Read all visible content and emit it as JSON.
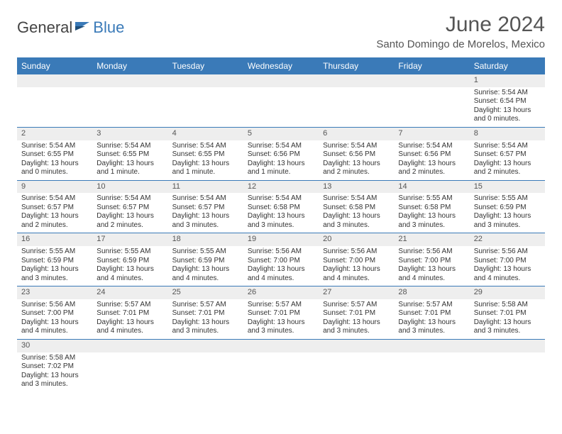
{
  "logo": {
    "text1": "General",
    "text2": "Blue"
  },
  "title": "June 2024",
  "subtitle": "Santo Domingo de Morelos, Mexico",
  "colors": {
    "header_bg": "#3a7ab8",
    "header_fg": "#ffffff",
    "daynum_bg": "#eeeeee",
    "row_border": "#3a7ab8",
    "text": "#333333",
    "logo_accent": "#3a7ab8"
  },
  "day_headers": [
    "Sunday",
    "Monday",
    "Tuesday",
    "Wednesday",
    "Thursday",
    "Friday",
    "Saturday"
  ],
  "weeks": [
    [
      null,
      null,
      null,
      null,
      null,
      null,
      {
        "n": "1",
        "sr": "Sunrise: 5:54 AM",
        "ss": "Sunset: 6:54 PM",
        "d1": "Daylight: 13 hours",
        "d2": "and 0 minutes."
      }
    ],
    [
      {
        "n": "2",
        "sr": "Sunrise: 5:54 AM",
        "ss": "Sunset: 6:55 PM",
        "d1": "Daylight: 13 hours",
        "d2": "and 0 minutes."
      },
      {
        "n": "3",
        "sr": "Sunrise: 5:54 AM",
        "ss": "Sunset: 6:55 PM",
        "d1": "Daylight: 13 hours",
        "d2": "and 1 minute."
      },
      {
        "n": "4",
        "sr": "Sunrise: 5:54 AM",
        "ss": "Sunset: 6:55 PM",
        "d1": "Daylight: 13 hours",
        "d2": "and 1 minute."
      },
      {
        "n": "5",
        "sr": "Sunrise: 5:54 AM",
        "ss": "Sunset: 6:56 PM",
        "d1": "Daylight: 13 hours",
        "d2": "and 1 minute."
      },
      {
        "n": "6",
        "sr": "Sunrise: 5:54 AM",
        "ss": "Sunset: 6:56 PM",
        "d1": "Daylight: 13 hours",
        "d2": "and 2 minutes."
      },
      {
        "n": "7",
        "sr": "Sunrise: 5:54 AM",
        "ss": "Sunset: 6:56 PM",
        "d1": "Daylight: 13 hours",
        "d2": "and 2 minutes."
      },
      {
        "n": "8",
        "sr": "Sunrise: 5:54 AM",
        "ss": "Sunset: 6:57 PM",
        "d1": "Daylight: 13 hours",
        "d2": "and 2 minutes."
      }
    ],
    [
      {
        "n": "9",
        "sr": "Sunrise: 5:54 AM",
        "ss": "Sunset: 6:57 PM",
        "d1": "Daylight: 13 hours",
        "d2": "and 2 minutes."
      },
      {
        "n": "10",
        "sr": "Sunrise: 5:54 AM",
        "ss": "Sunset: 6:57 PM",
        "d1": "Daylight: 13 hours",
        "d2": "and 2 minutes."
      },
      {
        "n": "11",
        "sr": "Sunrise: 5:54 AM",
        "ss": "Sunset: 6:57 PM",
        "d1": "Daylight: 13 hours",
        "d2": "and 3 minutes."
      },
      {
        "n": "12",
        "sr": "Sunrise: 5:54 AM",
        "ss": "Sunset: 6:58 PM",
        "d1": "Daylight: 13 hours",
        "d2": "and 3 minutes."
      },
      {
        "n": "13",
        "sr": "Sunrise: 5:54 AM",
        "ss": "Sunset: 6:58 PM",
        "d1": "Daylight: 13 hours",
        "d2": "and 3 minutes."
      },
      {
        "n": "14",
        "sr": "Sunrise: 5:55 AM",
        "ss": "Sunset: 6:58 PM",
        "d1": "Daylight: 13 hours",
        "d2": "and 3 minutes."
      },
      {
        "n": "15",
        "sr": "Sunrise: 5:55 AM",
        "ss": "Sunset: 6:59 PM",
        "d1": "Daylight: 13 hours",
        "d2": "and 3 minutes."
      }
    ],
    [
      {
        "n": "16",
        "sr": "Sunrise: 5:55 AM",
        "ss": "Sunset: 6:59 PM",
        "d1": "Daylight: 13 hours",
        "d2": "and 3 minutes."
      },
      {
        "n": "17",
        "sr": "Sunrise: 5:55 AM",
        "ss": "Sunset: 6:59 PM",
        "d1": "Daylight: 13 hours",
        "d2": "and 4 minutes."
      },
      {
        "n": "18",
        "sr": "Sunrise: 5:55 AM",
        "ss": "Sunset: 6:59 PM",
        "d1": "Daylight: 13 hours",
        "d2": "and 4 minutes."
      },
      {
        "n": "19",
        "sr": "Sunrise: 5:56 AM",
        "ss": "Sunset: 7:00 PM",
        "d1": "Daylight: 13 hours",
        "d2": "and 4 minutes."
      },
      {
        "n": "20",
        "sr": "Sunrise: 5:56 AM",
        "ss": "Sunset: 7:00 PM",
        "d1": "Daylight: 13 hours",
        "d2": "and 4 minutes."
      },
      {
        "n": "21",
        "sr": "Sunrise: 5:56 AM",
        "ss": "Sunset: 7:00 PM",
        "d1": "Daylight: 13 hours",
        "d2": "and 4 minutes."
      },
      {
        "n": "22",
        "sr": "Sunrise: 5:56 AM",
        "ss": "Sunset: 7:00 PM",
        "d1": "Daylight: 13 hours",
        "d2": "and 4 minutes."
      }
    ],
    [
      {
        "n": "23",
        "sr": "Sunrise: 5:56 AM",
        "ss": "Sunset: 7:00 PM",
        "d1": "Daylight: 13 hours",
        "d2": "and 4 minutes."
      },
      {
        "n": "24",
        "sr": "Sunrise: 5:57 AM",
        "ss": "Sunset: 7:01 PM",
        "d1": "Daylight: 13 hours",
        "d2": "and 4 minutes."
      },
      {
        "n": "25",
        "sr": "Sunrise: 5:57 AM",
        "ss": "Sunset: 7:01 PM",
        "d1": "Daylight: 13 hours",
        "d2": "and 3 minutes."
      },
      {
        "n": "26",
        "sr": "Sunrise: 5:57 AM",
        "ss": "Sunset: 7:01 PM",
        "d1": "Daylight: 13 hours",
        "d2": "and 3 minutes."
      },
      {
        "n": "27",
        "sr": "Sunrise: 5:57 AM",
        "ss": "Sunset: 7:01 PM",
        "d1": "Daylight: 13 hours",
        "d2": "and 3 minutes."
      },
      {
        "n": "28",
        "sr": "Sunrise: 5:57 AM",
        "ss": "Sunset: 7:01 PM",
        "d1": "Daylight: 13 hours",
        "d2": "and 3 minutes."
      },
      {
        "n": "29",
        "sr": "Sunrise: 5:58 AM",
        "ss": "Sunset: 7:01 PM",
        "d1": "Daylight: 13 hours",
        "d2": "and 3 minutes."
      }
    ],
    [
      {
        "n": "30",
        "sr": "Sunrise: 5:58 AM",
        "ss": "Sunset: 7:02 PM",
        "d1": "Daylight: 13 hours",
        "d2": "and 3 minutes."
      },
      null,
      null,
      null,
      null,
      null,
      null
    ]
  ]
}
